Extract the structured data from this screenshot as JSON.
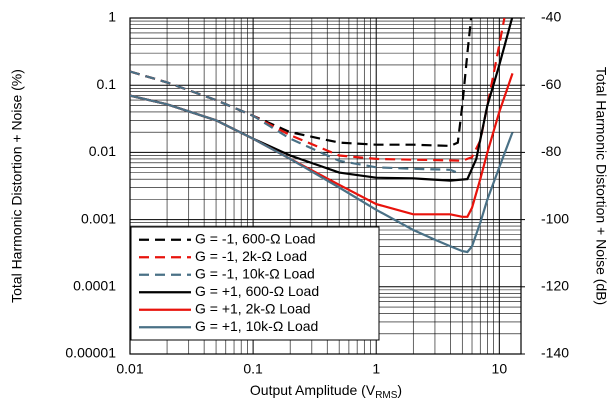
{
  "chart_data": {
    "type": "line",
    "y_label": "Total Harmonic Distortion + Noise (%)",
    "y2_label": "Total Harmonic Distortion + Noise (dB)",
    "x_label": {
      "text": "Output Amplitude (V",
      "subscript": "RMS",
      "suffix": ")"
    },
    "x_scale": "log",
    "y_scale": "log",
    "xlim": [
      0.01,
      15
    ],
    "xticks": [
      0.01,
      0.1,
      1,
      10
    ],
    "ylim": [
      1e-05,
      1
    ],
    "yticks": [
      1e-05,
      0.0001,
      0.001,
      0.01,
      0.1,
      1
    ],
    "y2lim": [
      -140,
      -40
    ],
    "y2ticks": [
      -140,
      -120,
      -100,
      -80,
      -60,
      -40
    ],
    "grid": "major-minor",
    "legend": "lower left",
    "series": [
      {
        "name": "G = -1, 600-Ω Load",
        "color": "#000000",
        "dash": true,
        "x": [
          0.01,
          0.02,
          0.05,
          0.1,
          0.2,
          0.5,
          1,
          2,
          4,
          4.6,
          5,
          5.5,
          5.9
        ],
        "values": [
          0.16,
          0.11,
          0.06,
          0.035,
          0.02,
          0.014,
          0.013,
          0.013,
          0.0125,
          0.014,
          0.05,
          0.3,
          1
        ]
      },
      {
        "name": "G = -1, 2k-Ω Load",
        "color": "#e8130c",
        "dash": true,
        "x": [
          0.01,
          0.02,
          0.05,
          0.1,
          0.2,
          0.5,
          1,
          2,
          4,
          5,
          6,
          7,
          8,
          9,
          10,
          11
        ],
        "values": [
          0.16,
          0.11,
          0.06,
          0.035,
          0.018,
          0.009,
          0.008,
          0.0078,
          0.0076,
          0.0075,
          0.0085,
          0.015,
          0.05,
          0.15,
          0.4,
          1
        ]
      },
      {
        "name": "G = -1, 10k-Ω Load",
        "color": "#4a7186",
        "dash": true,
        "x": [
          0.01,
          0.02,
          0.05,
          0.1,
          0.2,
          0.5,
          1,
          2,
          4,
          4.8
        ],
        "values": [
          0.16,
          0.11,
          0.06,
          0.035,
          0.016,
          0.0075,
          0.006,
          0.0057,
          0.0055,
          0.0048
        ]
      },
      {
        "name": "G = +1, 600-Ω Load",
        "color": "#000000",
        "dash": false,
        "x": [
          0.01,
          0.02,
          0.05,
          0.1,
          0.2,
          0.5,
          1,
          2,
          4,
          5.5,
          6.5,
          8,
          10,
          12.7
        ],
        "values": [
          0.07,
          0.052,
          0.03,
          0.016,
          0.009,
          0.005,
          0.0042,
          0.0041,
          0.0038,
          0.004,
          0.008,
          0.05,
          0.2,
          1
        ]
      },
      {
        "name": "G = +1, 2k-Ω Load",
        "color": "#e8130c",
        "dash": false,
        "x": [
          0.01,
          0.02,
          0.05,
          0.1,
          0.2,
          0.5,
          1,
          2,
          4,
          5,
          5.5,
          6,
          7,
          8,
          10,
          12.8
        ],
        "values": [
          0.07,
          0.052,
          0.03,
          0.016,
          0.008,
          0.0033,
          0.0017,
          0.0012,
          0.0012,
          0.0011,
          0.0011,
          0.0015,
          0.004,
          0.01,
          0.04,
          0.15
        ]
      },
      {
        "name": "G = +1, 10k-Ω Load",
        "color": "#4a7186",
        "dash": false,
        "x": [
          0.01,
          0.02,
          0.05,
          0.1,
          0.2,
          0.5,
          1,
          2,
          3,
          4,
          5,
          5.5,
          6,
          7,
          8,
          10,
          12.8
        ],
        "values": [
          0.07,
          0.052,
          0.03,
          0.016,
          0.008,
          0.003,
          0.0014,
          0.0007,
          0.0005,
          0.0004,
          0.00034,
          0.00033,
          0.0004,
          0.0009,
          0.002,
          0.006,
          0.02
        ]
      }
    ]
  }
}
